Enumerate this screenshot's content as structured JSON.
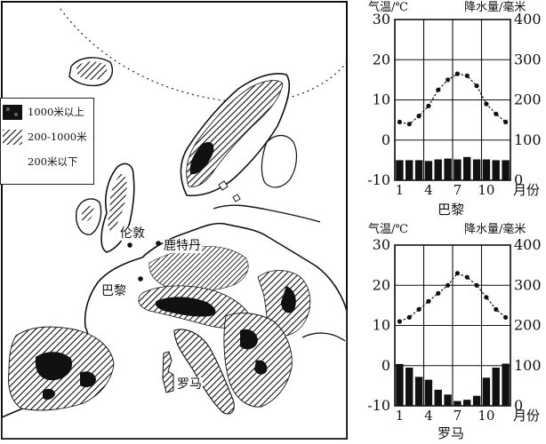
{
  "map": {
    "legend": [
      {
        "label": "1000米以上",
        "pattern": "dark"
      },
      {
        "label": "200-1000米",
        "pattern": "hatch"
      },
      {
        "label": "200米以下",
        "pattern": "blank"
      }
    ],
    "places": {
      "london": "伦敦",
      "rotterdam": "鹿特丹",
      "paris": "巴黎",
      "rome": "罗马"
    }
  },
  "chart_data": [
    {
      "type": "line+bar",
      "title": "巴黎",
      "y_left_label": "气温/℃",
      "y_right_label": "降水量/毫米",
      "x_unit": "月份",
      "x_tick_labels": [
        "1",
        "4",
        "7",
        "10"
      ],
      "y_left_range": [
        -10,
        30
      ],
      "y_left_ticks": [
        "30",
        "20",
        "10",
        "0",
        "-10"
      ],
      "y_right_range": [
        0,
        400
      ],
      "y_right_ticks": [
        "400",
        "300",
        "200",
        "100",
        "0"
      ],
      "months": [
        1,
        2,
        3,
        4,
        5,
        6,
        7,
        8,
        9,
        10,
        11,
        12
      ],
      "temperature": [
        4.5,
        4,
        6,
        8.5,
        12.5,
        15,
        16.5,
        16,
        13.5,
        9,
        6.5,
        4.5
      ],
      "precipitation": [
        50,
        50,
        50,
        48,
        52,
        54,
        52,
        58,
        52,
        52,
        50,
        50
      ]
    },
    {
      "type": "line+bar",
      "title": "罗马",
      "y_left_label": "气温/℃",
      "y_right_label": "降水量/毫米",
      "x_unit": "月份",
      "x_tick_labels": [
        "1",
        "4",
        "7",
        "10"
      ],
      "y_left_range": [
        -10,
        30
      ],
      "y_left_ticks": [
        "30",
        "20",
        "10",
        "0",
        "-10"
      ],
      "y_right_range": [
        0,
        400
      ],
      "y_right_ticks": [
        "400",
        "300",
        "200",
        "100",
        "0"
      ],
      "months": [
        1,
        2,
        3,
        4,
        5,
        6,
        7,
        8,
        9,
        10,
        11,
        12
      ],
      "temperature": [
        11,
        12,
        14,
        16,
        18,
        20,
        23,
        22,
        20,
        17,
        14,
        12
      ],
      "precipitation": [
        104,
        95,
        72,
        65,
        40,
        28,
        12,
        15,
        25,
        70,
        95,
        105
      ]
    }
  ]
}
